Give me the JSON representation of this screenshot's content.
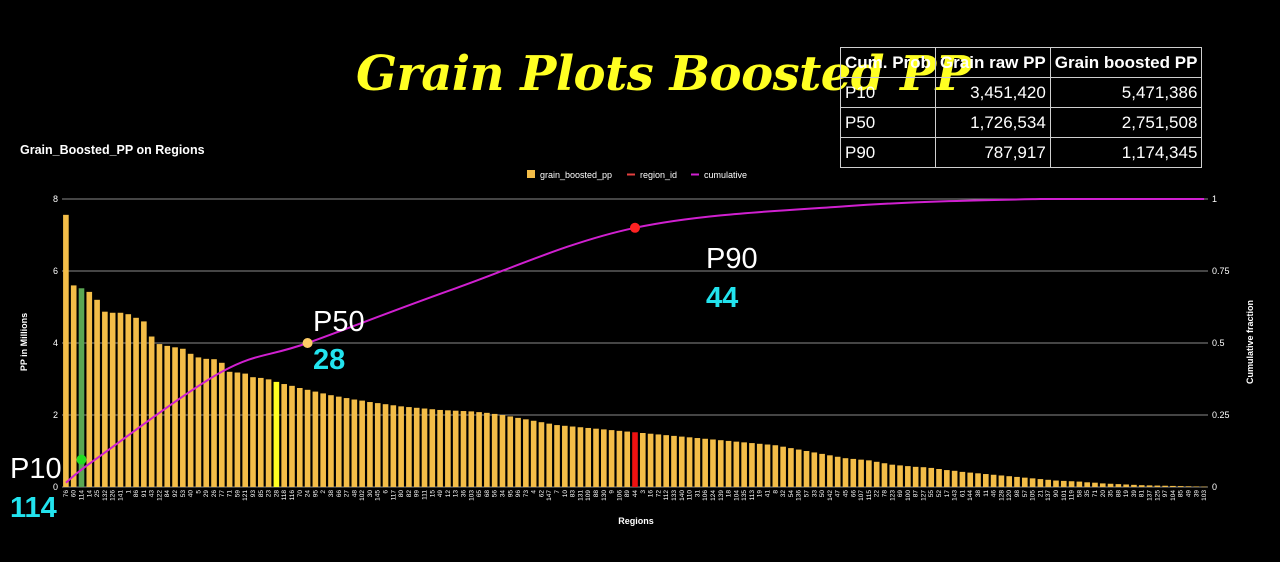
{
  "header": {
    "title": "Grain Plots Boosted PP"
  },
  "summary_table": {
    "columns": [
      "Cum. Prob",
      "Grain raw PP",
      "Grain boosted PP"
    ],
    "rows": [
      [
        "P10",
        "3,451,420",
        "5,471,386"
      ],
      [
        "P50",
        "1,726,534",
        "2,751,508"
      ],
      [
        "P90",
        "787,917",
        "1,174,345"
      ]
    ]
  },
  "annotations": [
    {
      "label": "P10",
      "value": "114",
      "x": "114",
      "color": "#22dd22"
    },
    {
      "label": "P50",
      "value": "28",
      "x": "28",
      "color": "#ffcc66"
    },
    {
      "label": "P90",
      "value": "44",
      "x": "44",
      "color": "#ff2222"
    }
  ],
  "chart_data": {
    "type": "bar",
    "title": "Grain_Boosted_PP on Regions",
    "xlabel": "Regions",
    "ylabel": "PP in Millions",
    "y2label": "Cumulative fraction",
    "ylim": [
      0,
      8
    ],
    "y2lim": [
      0,
      1
    ],
    "yticks": [
      "0",
      "2",
      "4",
      "6",
      "8"
    ],
    "y2ticks": [
      "0",
      "0.25",
      "0.5",
      "0.75",
      "1"
    ],
    "grid": true,
    "legend_position": "top",
    "legend": [
      {
        "name": "grain_boosted_pp",
        "color": "#f3bd48",
        "symbol": "square"
      },
      {
        "name": "region_id",
        "color": "#e34040",
        "symbol": "line"
      },
      {
        "name": "cumulative",
        "color": "#d020d0",
        "symbol": "line"
      }
    ],
    "categories": [
      "76",
      "60",
      "114",
      "14",
      "25",
      "132",
      "126",
      "141",
      "1",
      "86",
      "91",
      "43",
      "122",
      "84",
      "92",
      "53",
      "40",
      "5",
      "29",
      "26",
      "77",
      "71",
      "59",
      "121",
      "93",
      "85",
      "23",
      "28",
      "118",
      "116",
      "70",
      "24",
      "95",
      "2",
      "38",
      "66",
      "27",
      "48",
      "102",
      "30",
      "145",
      "6",
      "117",
      "80",
      "82",
      "99",
      "111",
      "15",
      "49",
      "12",
      "13",
      "36",
      "103",
      "65",
      "68",
      "56",
      "34",
      "95",
      "96",
      "73",
      "4",
      "62",
      "147",
      "7",
      "10",
      "83",
      "131",
      "109",
      "88",
      "130",
      "9",
      "106",
      "89",
      "44",
      "3",
      "16",
      "72",
      "112",
      "133",
      "140",
      "110",
      "31",
      "106",
      "124",
      "139",
      "18",
      "104",
      "135",
      "113",
      "19",
      "41",
      "8",
      "32",
      "54",
      "136",
      "57",
      "33",
      "50",
      "142",
      "47",
      "45",
      "66",
      "107",
      "115",
      "22",
      "78",
      "123",
      "69",
      "100",
      "87",
      "127",
      "55",
      "52",
      "17",
      "143",
      "61",
      "144",
      "38",
      "11",
      "46",
      "128",
      "120",
      "98",
      "57",
      "105",
      "21",
      "137",
      "90",
      "101",
      "119",
      "58",
      "35",
      "71",
      "20",
      "35",
      "88",
      "19",
      "39",
      "81",
      "137",
      "125",
      "97",
      "104",
      "85",
      "49",
      "39",
      "103"
    ],
    "values": [
      7.56,
      5.6,
      5.52,
      5.42,
      5.2,
      4.87,
      4.84,
      4.84,
      4.8,
      4.7,
      4.6,
      4.18,
      3.97,
      3.92,
      3.88,
      3.84,
      3.7,
      3.6,
      3.56,
      3.55,
      3.45,
      3.2,
      3.18,
      3.15,
      3.05,
      3.03,
      2.99,
      2.92,
      2.86,
      2.81,
      2.75,
      2.7,
      2.65,
      2.6,
      2.55,
      2.51,
      2.47,
      2.43,
      2.4,
      2.36,
      2.33,
      2.3,
      2.27,
      2.24,
      2.22,
      2.2,
      2.18,
      2.16,
      2.14,
      2.13,
      2.12,
      2.11,
      2.1,
      2.08,
      2.06,
      2.03,
      2.0,
      1.96,
      1.92,
      1.88,
      1.84,
      1.8,
      1.76,
      1.72,
      1.7,
      1.68,
      1.66,
      1.64,
      1.62,
      1.6,
      1.58,
      1.56,
      1.54,
      1.52,
      1.5,
      1.48,
      1.46,
      1.44,
      1.42,
      1.4,
      1.38,
      1.36,
      1.34,
      1.32,
      1.3,
      1.28,
      1.26,
      1.24,
      1.22,
      1.2,
      1.18,
      1.16,
      1.12,
      1.08,
      1.04,
      1.0,
      0.96,
      0.92,
      0.88,
      0.84,
      0.8,
      0.78,
      0.76,
      0.74,
      0.7,
      0.66,
      0.62,
      0.6,
      0.58,
      0.56,
      0.55,
      0.53,
      0.5,
      0.47,
      0.45,
      0.42,
      0.4,
      0.38,
      0.36,
      0.34,
      0.32,
      0.3,
      0.28,
      0.26,
      0.24,
      0.22,
      0.2,
      0.18,
      0.17,
      0.16,
      0.15,
      0.13,
      0.12,
      0.1,
      0.09,
      0.08,
      0.07,
      0.06,
      0.05,
      0.045,
      0.04,
      0.035,
      0.03,
      0.025,
      0.02,
      0.015,
      0.01
    ],
    "highlight_bars": [
      {
        "category": "114",
        "color": "#5aa653"
      },
      {
        "category": "28",
        "color": "#ffff22"
      },
      {
        "category": "44",
        "color": "#ee1111"
      }
    ],
    "cumulative_curve": {
      "name": "cumulative",
      "color": "#d020d0",
      "points_category_index": [
        0,
        4,
        20,
        31,
        50,
        73,
        100,
        125,
        146
      ],
      "points_cumulative": [
        0.015,
        0.1,
        0.4,
        0.5,
        0.69,
        0.9,
        0.975,
        1.0,
        1.0
      ]
    }
  }
}
